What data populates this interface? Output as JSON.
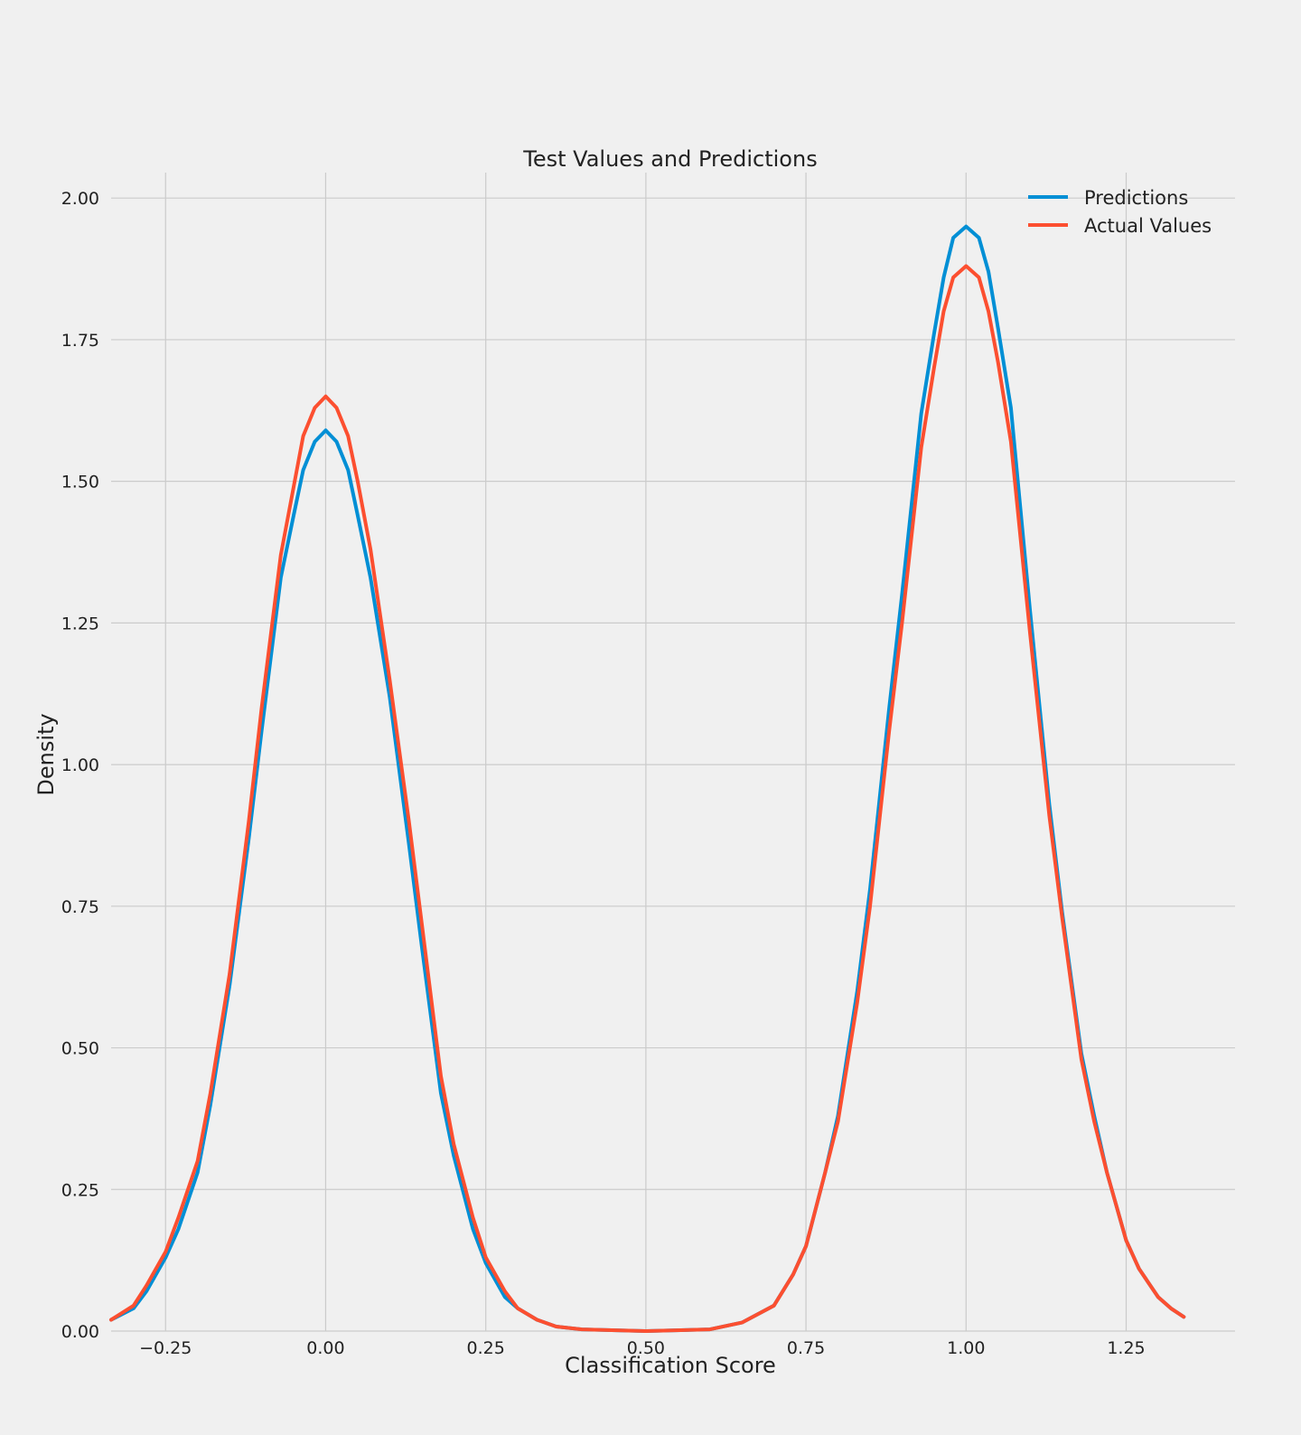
{
  "colors": {
    "background": "#f0f0f0",
    "grid": "#cbcbcb",
    "text": "#222222",
    "predictions": "#008fd5",
    "actual": "#fc4f30"
  },
  "chart_data": {
    "type": "line",
    "title": "Test Values and Predictions",
    "xlabel": "Classification Score",
    "ylabel": "Density",
    "xlim": [
      -0.335,
      1.42
    ],
    "ylim": [
      0,
      2.045
    ],
    "x_ticks": [
      -0.25,
      0.0,
      0.25,
      0.5,
      0.75,
      1.0,
      1.25
    ],
    "x_tick_labels": [
      "−0.25",
      "0.00",
      "0.25",
      "0.50",
      "0.75",
      "1.00",
      "1.25"
    ],
    "y_ticks": [
      0,
      0.25,
      0.5,
      0.75,
      1.0,
      1.25,
      1.5,
      1.75,
      2.0
    ],
    "y_tick_labels": [
      "0.00",
      "0.25",
      "0.50",
      "0.75",
      "1.00",
      "1.25",
      "1.50",
      "1.75",
      "2.00"
    ],
    "grid": true,
    "legend_position": "top-right",
    "series": [
      {
        "name": "Predictions",
        "color": "#008fd5",
        "points": [
          [
            -0.335,
            0.02
          ],
          [
            -0.3,
            0.04
          ],
          [
            -0.28,
            0.07
          ],
          [
            -0.25,
            0.13
          ],
          [
            -0.23,
            0.18
          ],
          [
            -0.2,
            0.28
          ],
          [
            -0.18,
            0.4
          ],
          [
            -0.15,
            0.61
          ],
          [
            -0.12,
            0.87
          ],
          [
            -0.1,
            1.06
          ],
          [
            -0.07,
            1.33
          ],
          [
            -0.05,
            1.44
          ],
          [
            -0.035,
            1.52
          ],
          [
            -0.017,
            1.57
          ],
          [
            0.0,
            1.59
          ],
          [
            0.017,
            1.57
          ],
          [
            0.035,
            1.52
          ],
          [
            0.05,
            1.44
          ],
          [
            0.07,
            1.33
          ],
          [
            0.1,
            1.12
          ],
          [
            0.13,
            0.86
          ],
          [
            0.15,
            0.68
          ],
          [
            0.18,
            0.42
          ],
          [
            0.2,
            0.31
          ],
          [
            0.23,
            0.18
          ],
          [
            0.25,
            0.12
          ],
          [
            0.28,
            0.06
          ],
          [
            0.3,
            0.04
          ],
          [
            0.33,
            0.02
          ],
          [
            0.36,
            0.008
          ],
          [
            0.4,
            0.003
          ],
          [
            0.5,
            0.0
          ],
          [
            0.6,
            0.003
          ],
          [
            0.65,
            0.015
          ],
          [
            0.7,
            0.045
          ],
          [
            0.73,
            0.1
          ],
          [
            0.75,
            0.15
          ],
          [
            0.78,
            0.28
          ],
          [
            0.8,
            0.38
          ],
          [
            0.83,
            0.6
          ],
          [
            0.85,
            0.78
          ],
          [
            0.88,
            1.1
          ],
          [
            0.9,
            1.3
          ],
          [
            0.93,
            1.62
          ],
          [
            0.95,
            1.76
          ],
          [
            0.965,
            1.86
          ],
          [
            0.98,
            1.93
          ],
          [
            1.0,
            1.95
          ],
          [
            1.02,
            1.93
          ],
          [
            1.035,
            1.87
          ],
          [
            1.05,
            1.77
          ],
          [
            1.07,
            1.63
          ],
          [
            1.1,
            1.27
          ],
          [
            1.13,
            0.93
          ],
          [
            1.15,
            0.74
          ],
          [
            1.18,
            0.49
          ],
          [
            1.2,
            0.38
          ],
          [
            1.22,
            0.28
          ],
          [
            1.25,
            0.16
          ],
          [
            1.27,
            0.11
          ],
          [
            1.3,
            0.06
          ],
          [
            1.32,
            0.04
          ],
          [
            1.34,
            0.025
          ]
        ]
      },
      {
        "name": "Actual Values",
        "color": "#fc4f30",
        "points": [
          [
            -0.335,
            0.02
          ],
          [
            -0.3,
            0.045
          ],
          [
            -0.28,
            0.08
          ],
          [
            -0.25,
            0.14
          ],
          [
            -0.23,
            0.2
          ],
          [
            -0.2,
            0.3
          ],
          [
            -0.18,
            0.42
          ],
          [
            -0.15,
            0.63
          ],
          [
            -0.12,
            0.9
          ],
          [
            -0.1,
            1.1
          ],
          [
            -0.07,
            1.37
          ],
          [
            -0.05,
            1.49
          ],
          [
            -0.035,
            1.58
          ],
          [
            -0.017,
            1.63
          ],
          [
            0.0,
            1.65
          ],
          [
            0.017,
            1.63
          ],
          [
            0.035,
            1.58
          ],
          [
            0.05,
            1.5
          ],
          [
            0.07,
            1.38
          ],
          [
            0.1,
            1.15
          ],
          [
            0.13,
            0.9
          ],
          [
            0.15,
            0.72
          ],
          [
            0.18,
            0.45
          ],
          [
            0.2,
            0.33
          ],
          [
            0.23,
            0.2
          ],
          [
            0.25,
            0.13
          ],
          [
            0.28,
            0.07
          ],
          [
            0.3,
            0.04
          ],
          [
            0.33,
            0.02
          ],
          [
            0.36,
            0.008
          ],
          [
            0.4,
            0.003
          ],
          [
            0.5,
            0.0
          ],
          [
            0.6,
            0.003
          ],
          [
            0.65,
            0.015
          ],
          [
            0.7,
            0.045
          ],
          [
            0.73,
            0.1
          ],
          [
            0.75,
            0.15
          ],
          [
            0.78,
            0.28
          ],
          [
            0.8,
            0.37
          ],
          [
            0.83,
            0.58
          ],
          [
            0.85,
            0.75
          ],
          [
            0.88,
            1.06
          ],
          [
            0.9,
            1.25
          ],
          [
            0.93,
            1.56
          ],
          [
            0.95,
            1.7
          ],
          [
            0.965,
            1.8
          ],
          [
            0.98,
            1.86
          ],
          [
            1.0,
            1.88
          ],
          [
            1.02,
            1.86
          ],
          [
            1.035,
            1.8
          ],
          [
            1.05,
            1.71
          ],
          [
            1.07,
            1.57
          ],
          [
            1.1,
            1.23
          ],
          [
            1.13,
            0.91
          ],
          [
            1.15,
            0.73
          ],
          [
            1.18,
            0.48
          ],
          [
            1.2,
            0.37
          ],
          [
            1.22,
            0.28
          ],
          [
            1.25,
            0.16
          ],
          [
            1.27,
            0.11
          ],
          [
            1.3,
            0.06
          ],
          [
            1.32,
            0.04
          ],
          [
            1.34,
            0.025
          ]
        ]
      }
    ]
  }
}
